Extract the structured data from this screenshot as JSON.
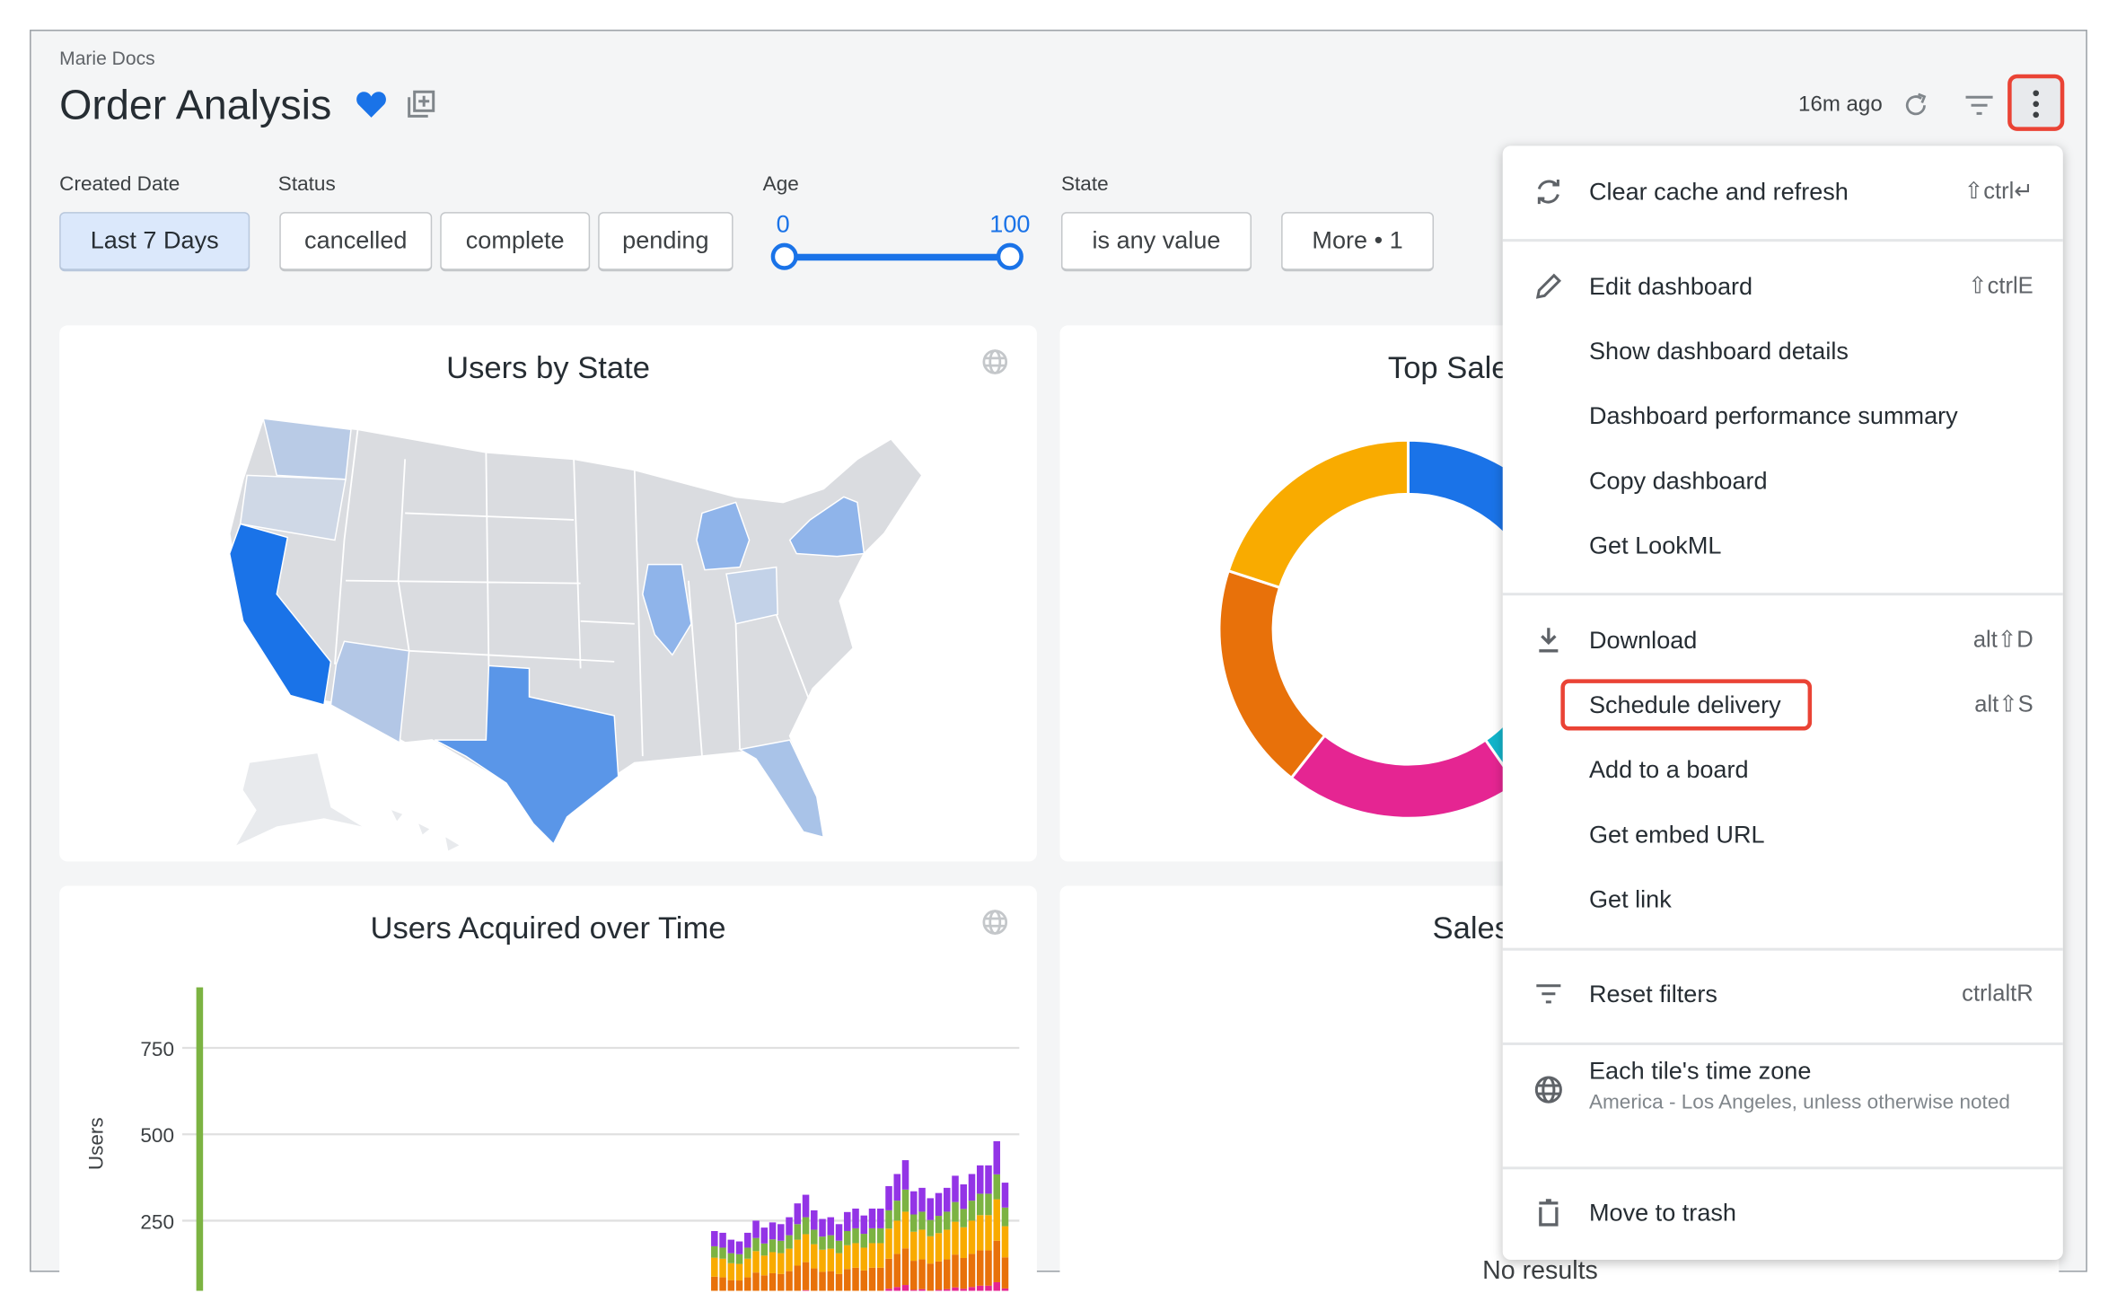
{
  "header": {
    "breadcrumb": "Marie Docs",
    "title": "Order Analysis",
    "updated": "16m ago"
  },
  "colors": {
    "accent": "#1a73e8",
    "highlight": "#ea4335",
    "pink": "#e52592",
    "orange": "#e8710a",
    "yellow": "#f9ab00",
    "green": "#7cb342",
    "purple": "#9334e6",
    "teal": "#12b5cb",
    "blue": "#1a73e8"
  },
  "filters": {
    "created_date": {
      "label": "Created Date",
      "value": "Last 7 Days"
    },
    "status": {
      "label": "Status",
      "options": [
        "cancelled",
        "complete",
        "pending"
      ]
    },
    "age": {
      "label": "Age",
      "min": "0",
      "max": "100",
      "range": [
        0,
        100
      ]
    },
    "state": {
      "label": "State",
      "value": "is any value"
    },
    "more": "More • 1"
  },
  "tiles": {
    "users_by_state": {
      "title": "Users by State"
    },
    "top_sale": {
      "title": "Top Sale"
    },
    "users_acquired": {
      "title": "Users Acquired over Time"
    },
    "sales": {
      "title": "Sales",
      "empty": "No results"
    }
  },
  "menu": {
    "items": [
      {
        "label": "Clear cache and refresh",
        "shortcut": "⇧ctrl↵",
        "icon": "refresh-icon"
      },
      {
        "label": "Edit dashboard",
        "shortcut": "⇧ctrlE",
        "icon": "pencil-icon"
      },
      {
        "label": "Show dashboard details"
      },
      {
        "label": "Dashboard performance summary"
      },
      {
        "label": "Copy dashboard"
      },
      {
        "label": "Get LookML"
      },
      {
        "label": "Download",
        "shortcut": "alt⇧D",
        "icon": "download-icon"
      },
      {
        "label": "Schedule delivery",
        "shortcut": "alt⇧S",
        "highlighted": true
      },
      {
        "label": "Add to a board"
      },
      {
        "label": "Get embed URL"
      },
      {
        "label": "Get link"
      },
      {
        "label": "Reset filters",
        "shortcut": "ctrlaltR",
        "icon": "filter-icon"
      },
      {
        "label": "Each tile's time zone",
        "sublabel": "America - Los Angeles, unless otherwise noted",
        "icon": "globe-icon"
      },
      {
        "label": "Move to trash",
        "icon": "trash-icon"
      }
    ]
  },
  "chart_data": [
    {
      "type": "pie",
      "title": "Top Sale",
      "donut": true,
      "slices": [
        {
          "color": "#1a73e8",
          "share": 34.7
        },
        {
          "color": "#12b5cb",
          "share": 5.6
        },
        {
          "color": "#e52592",
          "share": 20.3
        },
        {
          "color": "#e8710a",
          "share": 19.4
        },
        {
          "color": "#f9ab00",
          "share": 20.0
        }
      ]
    },
    {
      "type": "bar",
      "stacked": true,
      "title": "Users Acquired over Time",
      "ylabel": "Users",
      "yticks": [
        "250",
        "500",
        "750"
      ],
      "ylim": [
        0,
        950
      ],
      "grid": true,
      "x": [
        0,
        61,
        62,
        63,
        64,
        65,
        66,
        67,
        68,
        69,
        70,
        71,
        72,
        73,
        74,
        75,
        76,
        77,
        78,
        79,
        80,
        81,
        82,
        83,
        84,
        85,
        86,
        87,
        88,
        89,
        90,
        91,
        92,
        93,
        94,
        95,
        96,
        97
      ],
      "series": [
        {
          "color": "#e52592",
          "values": [
            0,
            0,
            33,
            32,
            29,
            29,
            32,
            38,
            35,
            37,
            36,
            39,
            45,
            49,
            42,
            38,
            39,
            36,
            41,
            43,
            40,
            43,
            43,
            53,
            58,
            64,
            50,
            52,
            47,
            50,
            52,
            57,
            53,
            58,
            62,
            62,
            72,
            54
          ]
        },
        {
          "color": "#e8710a",
          "values": [
            0,
            0,
            55,
            54,
            49,
            48,
            54,
            62,
            57,
            61,
            60,
            65,
            75,
            81,
            70,
            64,
            65,
            60,
            69,
            71,
            66,
            71,
            71,
            87,
            96,
            106,
            84,
            86,
            79,
            82,
            86,
            95,
            89,
            96,
            102,
            102,
            120,
            90
          ]
        },
        {
          "color": "#f9ab00",
          "values": [
            0,
            0,
            55,
            54,
            49,
            48,
            54,
            62,
            57,
            61,
            60,
            65,
            75,
            81,
            70,
            64,
            65,
            60,
            69,
            71,
            66,
            71,
            71,
            87,
            96,
            106,
            84,
            86,
            79,
            82,
            86,
            95,
            89,
            96,
            102,
            102,
            120,
            90
          ]
        },
        {
          "color": "#7cb342",
          "values": [
            925,
            0,
            33,
            32,
            29,
            28,
            32,
            38,
            35,
            37,
            36,
            39,
            45,
            49,
            42,
            38,
            39,
            36,
            41,
            43,
            40,
            43,
            43,
            53,
            58,
            64,
            50,
            52,
            47,
            50,
            52,
            57,
            53,
            58,
            62,
            62,
            72,
            54
          ]
        },
        {
          "color": "#9334e6",
          "values": [
            0,
            10,
            44,
            43,
            39,
            37,
            43,
            50,
            46,
            49,
            48,
            52,
            60,
            65,
            56,
            51,
            52,
            48,
            55,
            57,
            53,
            57,
            57,
            70,
            77,
            85,
            67,
            69,
            63,
            66,
            69,
            76,
            71,
            77,
            82,
            82,
            96,
            72
          ]
        }
      ]
    }
  ]
}
